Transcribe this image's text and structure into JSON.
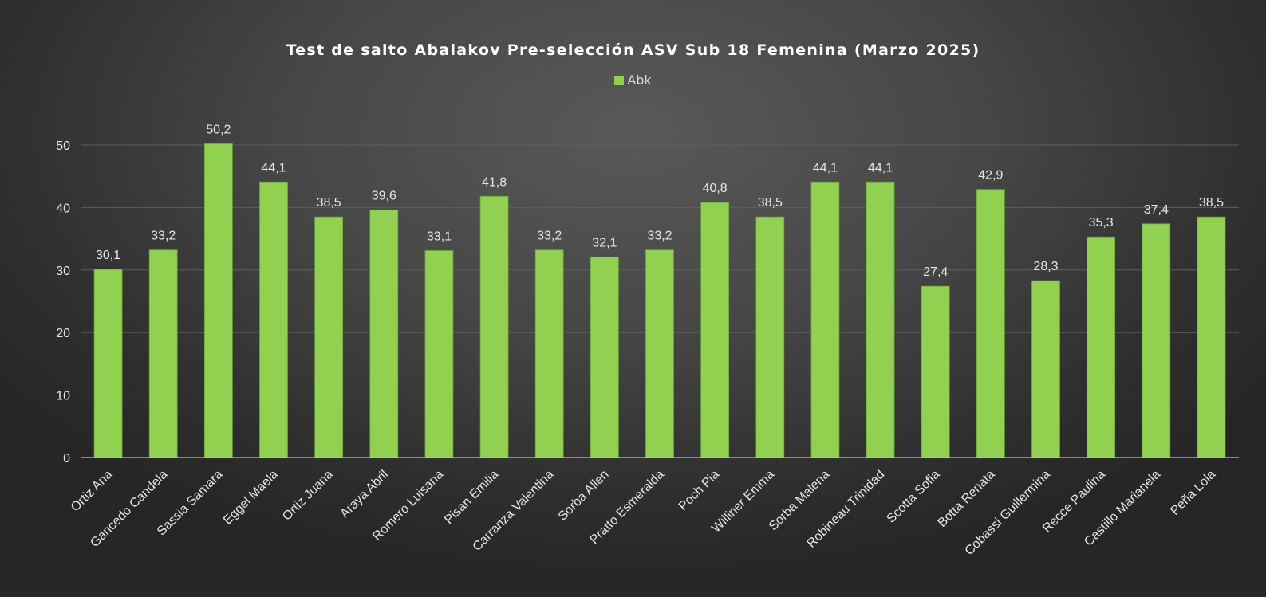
{
  "chart_data": {
    "type": "bar",
    "title": "Test de salto Abalakov Pre-selección ASV Sub 18 Femenina (Marzo 2025)",
    "xlabel": "",
    "ylabel": "",
    "ylim": [
      0,
      50
    ],
    "yticks": [
      0,
      10,
      20,
      30,
      40,
      50
    ],
    "grid": true,
    "legend_position": "top",
    "categories": [
      "Ortiz Ana",
      "Gancedo Candela",
      "Sassia Samara",
      "Eggel Maela",
      "Ortiz Juana",
      "Araya Abril",
      "Romero Luisana",
      "Pisan Emilia",
      "Carranza Valentina",
      "Sorba Allen",
      "Pratto Esmeralda",
      "Poch Pia",
      "Williner Emma",
      "Sorba Malena",
      "Robineau Trinidad",
      "Scotta Sofia",
      "Botta Renata",
      "Cobassi Guillermina",
      "Recce Paulina",
      "Castillo Marianela",
      "Peña Lola"
    ],
    "series": [
      {
        "name": "Abk",
        "color": "#92d050",
        "values": [
          30.1,
          33.2,
          50.2,
          44.1,
          38.5,
          39.6,
          33.1,
          41.8,
          33.2,
          32.1,
          33.2,
          40.8,
          38.5,
          44.1,
          44.1,
          27.4,
          42.9,
          28.3,
          35.3,
          37.4,
          38.5
        ],
        "data_labels": [
          "30,1",
          "33,2",
          "50,2",
          "44,1",
          "38,5",
          "39,6",
          "33,1",
          "41,8",
          "33,2",
          "32,1",
          "33,2",
          "40,8",
          "38,5",
          "44,1",
          "44,1",
          "27,4",
          "42,9",
          "28,3",
          "35,3",
          "37,4",
          "38,5"
        ]
      }
    ]
  }
}
